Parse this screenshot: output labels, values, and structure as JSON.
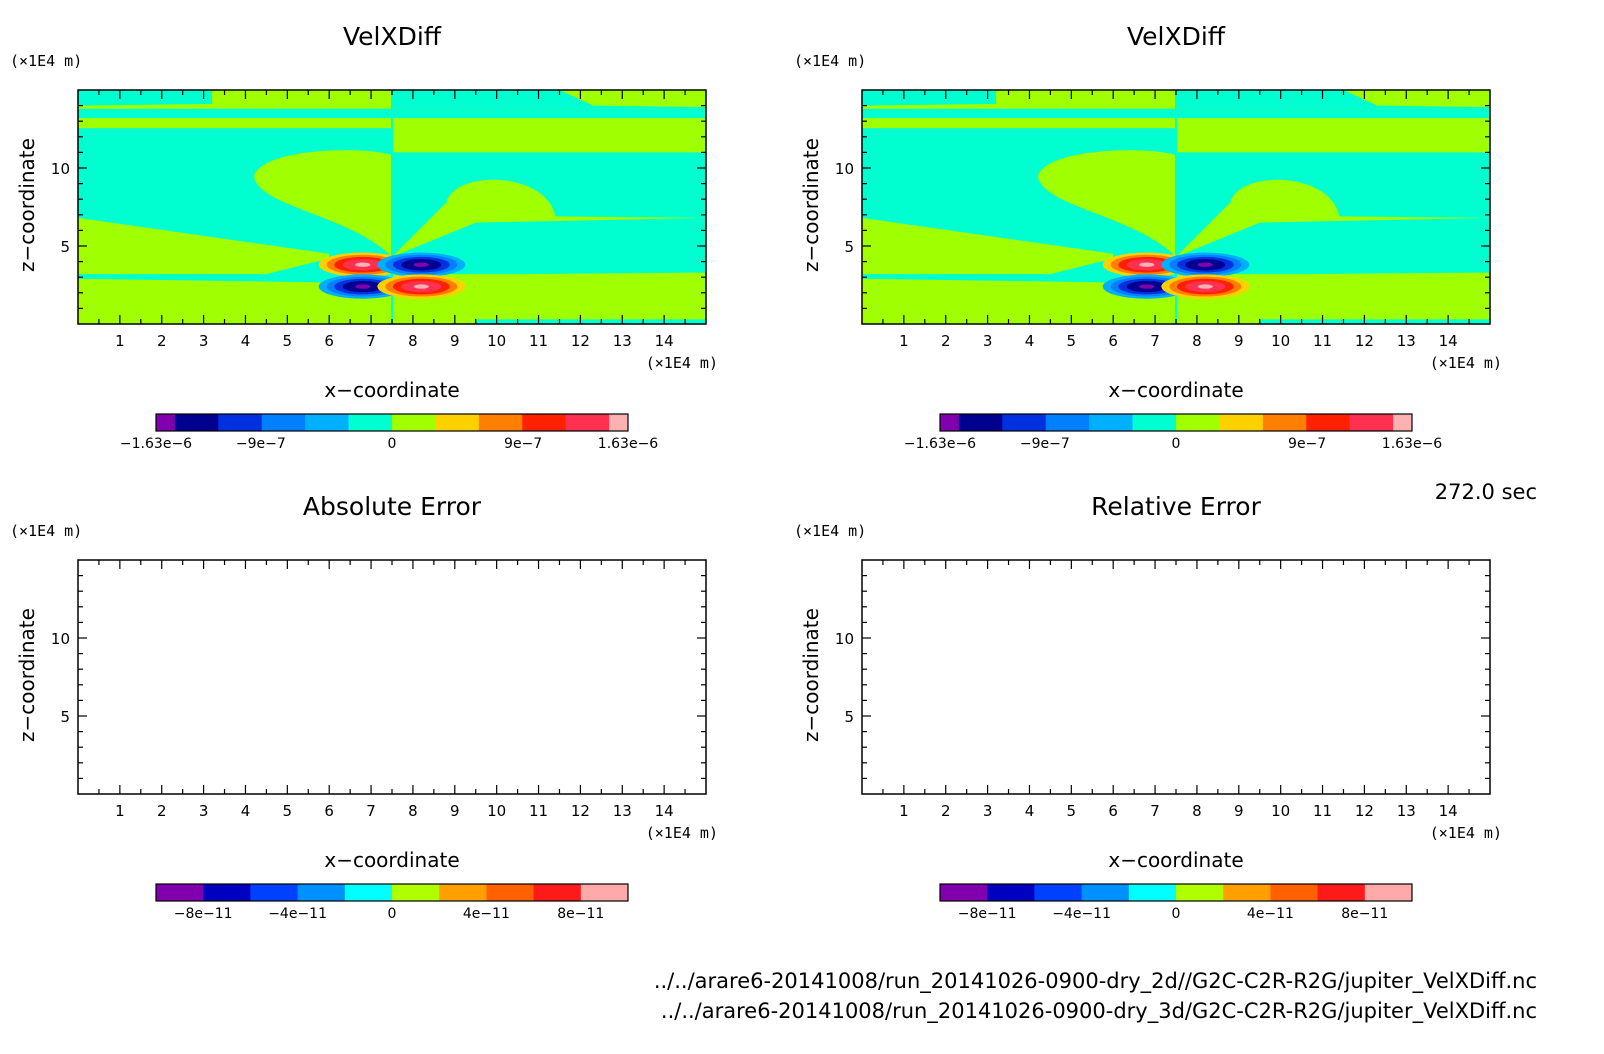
{
  "time_label": "272.0 sec",
  "file_paths": [
    "../../arare6-20141008/run_20141026-0900-dry_2d//G2C-C2R-R2G/jupiter_VelXDiff.nc",
    "../../arare6-20141008/run_20141026-0900-dry_3d/G2C-C2R-R2G/jupiter_VelXDiff.nc"
  ],
  "colors": {
    "contour_levels": [
      "#8000b0",
      "#000090",
      "#0030e0",
      "#0080ff",
      "#00b0ff",
      "#00ffd0",
      "#a0ff00",
      "#ffd000",
      "#ff8000",
      "#ff2000",
      "#ff3050",
      "#ffb0b0"
    ],
    "error_levels": [
      "#8000b0",
      "#0000c0",
      "#0040ff",
      "#0090ff",
      "#00ffff",
      "#b0ff00",
      "#ffa000",
      "#ff6000",
      "#ff1a1a",
      "#ffaaaa"
    ]
  },
  "chart_data": [
    {
      "id": "velx-2d",
      "type": "heatmap",
      "title": "VelXDiff",
      "xlabel": "x−coordinate",
      "ylabel": "z−coordinate",
      "x_unit": "(×1E4 m)",
      "y_unit": "(×1E4 m)",
      "xlim": [
        0,
        15
      ],
      "ylim": [
        0,
        15
      ],
      "x_ticks": [
        1,
        2,
        3,
        4,
        5,
        6,
        7,
        8,
        9,
        10,
        11,
        12,
        13,
        14
      ],
      "y_ticks": [
        5,
        10
      ],
      "filled": true,
      "dipoles": [
        {
          "x": 6.8,
          "z": 3.8,
          "sign": 1
        },
        {
          "x": 6.8,
          "z": 2.4,
          "sign": -1
        },
        {
          "x": 8.2,
          "z": 3.8,
          "sign": -1
        },
        {
          "x": 8.2,
          "z": 2.4,
          "sign": 1
        }
      ],
      "colorbar": {
        "labels": [
          "−1.63e−6",
          "−9e−7",
          "0",
          "9e−7",
          "1.63e−6"
        ],
        "range": [
          -1.63e-06,
          1.63e-06
        ]
      }
    },
    {
      "id": "velx-3d",
      "type": "heatmap",
      "title": "VelXDiff",
      "xlabel": "x−coordinate",
      "ylabel": "z−coordinate",
      "x_unit": "(×1E4 m)",
      "y_unit": "(×1E4 m)",
      "xlim": [
        0,
        15
      ],
      "ylim": [
        0,
        15
      ],
      "x_ticks": [
        1,
        2,
        3,
        4,
        5,
        6,
        7,
        8,
        9,
        10,
        11,
        12,
        13,
        14
      ],
      "y_ticks": [
        5,
        10
      ],
      "filled": true,
      "dipoles": [
        {
          "x": 6.8,
          "z": 3.8,
          "sign": 1
        },
        {
          "x": 6.8,
          "z": 2.4,
          "sign": -1
        },
        {
          "x": 8.2,
          "z": 3.8,
          "sign": -1
        },
        {
          "x": 8.2,
          "z": 2.4,
          "sign": 1
        }
      ],
      "colorbar": {
        "labels": [
          "−1.63e−6",
          "−9e−7",
          "0",
          "9e−7",
          "1.63e−6"
        ],
        "range": [
          -1.63e-06,
          1.63e-06
        ]
      }
    },
    {
      "id": "absolute-error",
      "type": "heatmap",
      "title": "Absolute Error",
      "xlabel": "x−coordinate",
      "ylabel": "z−coordinate",
      "x_unit": "(×1E4 m)",
      "y_unit": "(×1E4 m)",
      "xlim": [
        0,
        15
      ],
      "ylim": [
        0,
        15
      ],
      "x_ticks": [
        1,
        2,
        3,
        4,
        5,
        6,
        7,
        8,
        9,
        10,
        11,
        12,
        13,
        14
      ],
      "y_ticks": [
        5,
        10
      ],
      "filled": false,
      "colorbar": {
        "labels": [
          "−8e−11",
          "−4e−11",
          "0",
          "4e−11",
          "8e−11"
        ],
        "range": [
          -1e-10,
          1e-10
        ]
      }
    },
    {
      "id": "relative-error",
      "type": "heatmap",
      "title": "Relative Error",
      "xlabel": "x−coordinate",
      "ylabel": "z−coordinate",
      "x_unit": "(×1E4 m)",
      "y_unit": "(×1E4 m)",
      "xlim": [
        0,
        15
      ],
      "ylim": [
        0,
        15
      ],
      "x_ticks": [
        1,
        2,
        3,
        4,
        5,
        6,
        7,
        8,
        9,
        10,
        11,
        12,
        13,
        14
      ],
      "y_ticks": [
        5,
        10
      ],
      "filled": false,
      "colorbar": {
        "labels": [
          "−8e−11",
          "−4e−11",
          "0",
          "4e−11",
          "8e−11"
        ],
        "range": [
          -1e-10,
          1e-10
        ]
      }
    }
  ]
}
